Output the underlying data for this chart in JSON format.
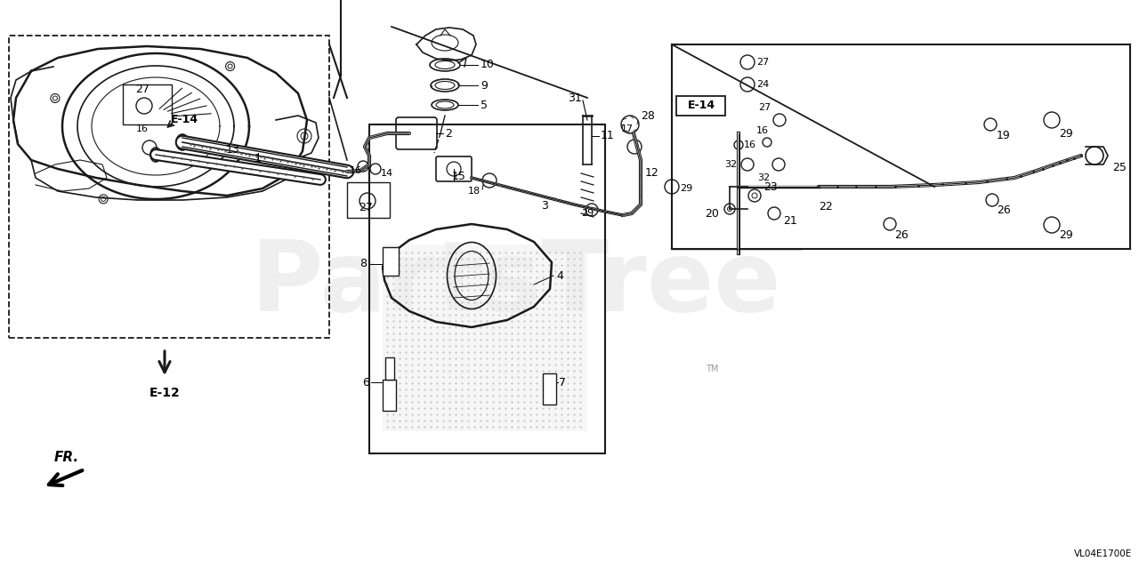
{
  "bg_color": "#ffffff",
  "diagram_color": "#1a1a1a",
  "watermark": "PartsTree",
  "watermark_color": "#cccccc",
  "bottom_copyright": "VL04E1700E",
  "tm_text": "TM"
}
